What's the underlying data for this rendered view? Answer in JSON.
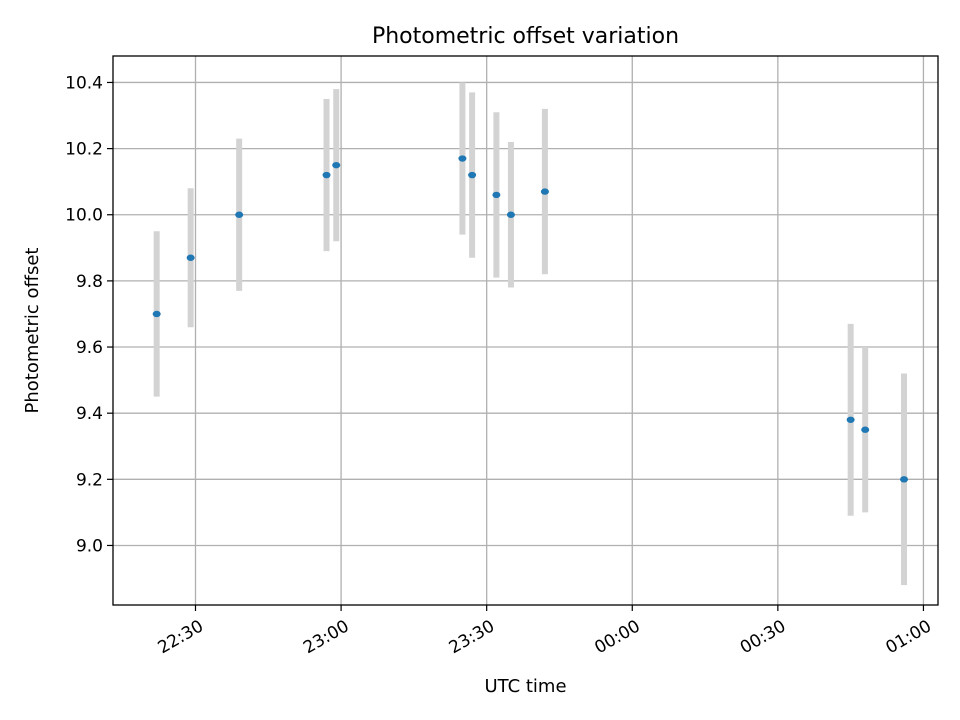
{
  "chart_data": {
    "type": "scatter",
    "title": "Photometric offset variation",
    "xlabel": "UTC time",
    "ylabel": "Photometric offset",
    "x_axis": {
      "type": "time",
      "range": [
        "22:13",
        "01:03"
      ],
      "ticks": [
        "22:30",
        "23:00",
        "23:30",
        "00:00",
        "00:30",
        "01:00"
      ]
    },
    "ylim": [
      8.82,
      10.48
    ],
    "y_ticks": [
      9.0,
      9.2,
      9.4,
      9.6,
      9.8,
      10.0,
      10.2,
      10.4
    ],
    "y_tick_labels": [
      "9.0",
      "9.2",
      "9.4",
      "9.6",
      "9.8",
      "10.0",
      "10.2",
      "10.4"
    ],
    "grid": true,
    "errorbar_color": "#d3d3d3",
    "point_color": "#1f77b4",
    "points": [
      {
        "x": "22:22",
        "y": 9.7,
        "yerr": 0.25
      },
      {
        "x": "22:29",
        "y": 9.87,
        "yerr": 0.21
      },
      {
        "x": "22:39",
        "y": 10.0,
        "yerr": 0.23
      },
      {
        "x": "22:57",
        "y": 10.12,
        "yerr": 0.23
      },
      {
        "x": "22:59",
        "y": 10.15,
        "yerr": 0.23
      },
      {
        "x": "23:25",
        "y": 10.17,
        "yerr": 0.23
      },
      {
        "x": "23:27",
        "y": 10.12,
        "yerr": 0.25
      },
      {
        "x": "23:32",
        "y": 10.06,
        "yerr": 0.25
      },
      {
        "x": "23:35",
        "y": 10.0,
        "yerr": 0.22
      },
      {
        "x": "23:42",
        "y": 10.07,
        "yerr": 0.25
      },
      {
        "x": "00:45",
        "y": 9.38,
        "yerr": 0.29
      },
      {
        "x": "00:48",
        "y": 9.35,
        "yerr": 0.25
      },
      {
        "x": "00:56",
        "y": 9.2,
        "yerr": 0.32
      }
    ]
  }
}
